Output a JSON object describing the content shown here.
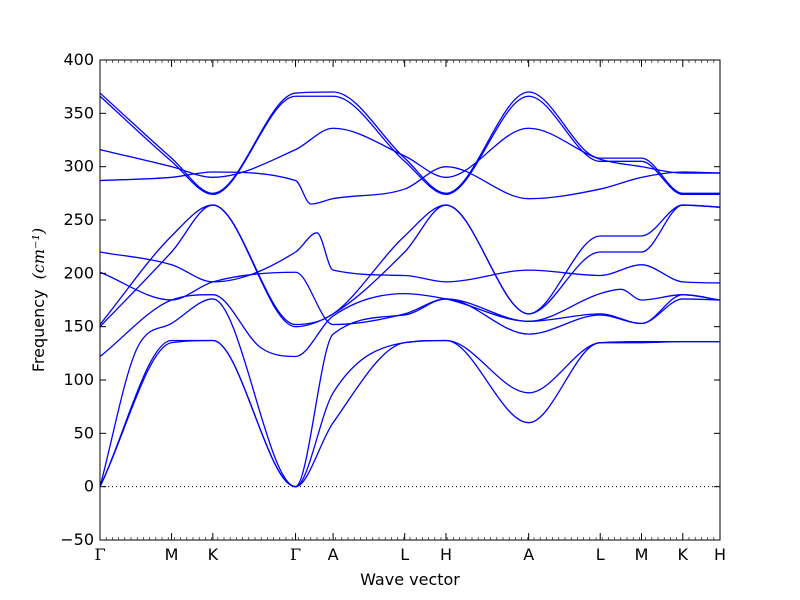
{
  "chart_data": {
    "type": "line",
    "xlabel": "Wave vector",
    "ylabel": "Frequency",
    "ylabel_unit": "(cm⁻¹)",
    "ylim": [
      -50,
      400
    ],
    "yticks": [
      -50,
      0,
      50,
      100,
      150,
      200,
      250,
      300,
      350,
      400
    ],
    "x_labels": [
      "Γ",
      "M",
      "K",
      "Γ",
      "A",
      "L",
      "H",
      "A",
      "L",
      "M",
      "K",
      "H"
    ],
    "x_positions": [
      0.0,
      0.577,
      0.91,
      1.577,
      1.88,
      2.457,
      2.79,
      3.457,
      4.034,
      4.367,
      4.7,
      5.0
    ],
    "xlim": [
      0.0,
      5.0
    ],
    "grid": false,
    "zero_line": true,
    "color": "#0000ff",
    "series": [
      {
        "x": [
          0.0,
          0.577,
          0.91,
          1.577,
          1.88,
          2.457,
          2.79,
          3.457,
          4.034,
          4.367,
          4.7,
          5.0
        ],
        "y": [
          0,
          135,
          137,
          0,
          60,
          135,
          137,
          60,
          135,
          135,
          136,
          136
        ]
      },
      {
        "x": [
          0.0,
          0.577,
          0.91,
          1.577,
          1.88,
          2.457,
          2.79,
          3.457,
          4.034,
          4.367,
          4.7,
          5.0
        ],
        "y": [
          0,
          137,
          137,
          0,
          88,
          135,
          137,
          88,
          135,
          136,
          136,
          136
        ]
      },
      {
        "x": [
          0.0,
          0.3,
          0.577,
          0.91,
          1.577,
          1.88,
          2.457,
          2.79,
          3.457,
          4.034,
          4.367,
          4.7,
          5.0
        ],
        "y": [
          0,
          130,
          153,
          176,
          0,
          143,
          161,
          176,
          143,
          161,
          153,
          176,
          175
        ]
      },
      {
        "x": [
          0.0,
          0.577,
          0.91,
          1.3,
          1.577,
          1.88,
          2.457,
          2.79,
          3.457,
          4.034,
          4.2,
          4.367,
          4.7,
          5.0
        ],
        "y": [
          122,
          175,
          180,
          130,
          122,
          160,
          181,
          176,
          155,
          181,
          185,
          175,
          180,
          175
        ]
      },
      {
        "x": [
          0.0,
          0.577,
          0.91,
          1.577,
          1.88,
          2.457,
          2.79,
          3.457,
          4.034,
          4.367,
          4.7,
          5.0
        ],
        "y": [
          150,
          220,
          264,
          150,
          162,
          220,
          264,
          162,
          220,
          220,
          264,
          262
        ]
      },
      {
        "x": [
          0.0,
          0.577,
          0.91,
          1.577,
          1.88,
          2.457,
          2.79,
          3.457,
          4.034,
          4.367,
          4.7,
          5.0
        ],
        "y": [
          152,
          235,
          264,
          152,
          162,
          235,
          264,
          162,
          235,
          235,
          264,
          262
        ]
      },
      {
        "x": [
          0.0,
          0.577,
          0.91,
          1.577,
          1.75,
          1.88,
          2.457,
          2.79,
          3.457,
          4.034,
          4.367,
          4.7,
          5.0
        ],
        "y": [
          220,
          208,
          192,
          220,
          238,
          203,
          198,
          192,
          203,
          198,
          208,
          192,
          191
        ]
      },
      {
        "x": [
          0.0,
          0.577,
          0.91,
          1.577,
          1.88,
          2.457,
          2.79,
          3.457,
          4.034,
          4.367,
          4.7,
          5.0
        ],
        "y": [
          201,
          175,
          192,
          201,
          152,
          162,
          176,
          155,
          162,
          153,
          180,
          175
        ]
      },
      {
        "x": [
          0.0,
          0.577,
          0.91,
          1.577,
          1.7,
          1.88,
          2.457,
          2.79,
          3.457,
          4.034,
          4.367,
          4.7,
          5.0
        ],
        "y": [
          287,
          290,
          295,
          287,
          265,
          270,
          279,
          300,
          270,
          279,
          290,
          295,
          294
        ]
      },
      {
        "x": [
          0.0,
          0.577,
          0.91,
          1.577,
          1.88,
          2.457,
          2.79,
          3.457,
          4.034,
          4.367,
          4.7,
          5.0
        ],
        "y": [
          316,
          300,
          290,
          316,
          336,
          310,
          290,
          336,
          307,
          300,
          294,
          294
        ]
      },
      {
        "x": [
          0.0,
          0.577,
          0.91,
          1.577,
          1.88,
          2.457,
          2.79,
          3.457,
          4.034,
          4.367,
          4.7,
          5.0
        ],
        "y": [
          366,
          305,
          274,
          366,
          366,
          305,
          274,
          366,
          305,
          305,
          274,
          274
        ]
      },
      {
        "x": [
          0.0,
          0.577,
          0.91,
          1.577,
          1.88,
          2.457,
          2.79,
          3.457,
          4.034,
          4.367,
          4.7,
          5.0
        ],
        "y": [
          369,
          308,
          275,
          369,
          370,
          308,
          275,
          370,
          308,
          308,
          275,
          275
        ]
      }
    ]
  }
}
